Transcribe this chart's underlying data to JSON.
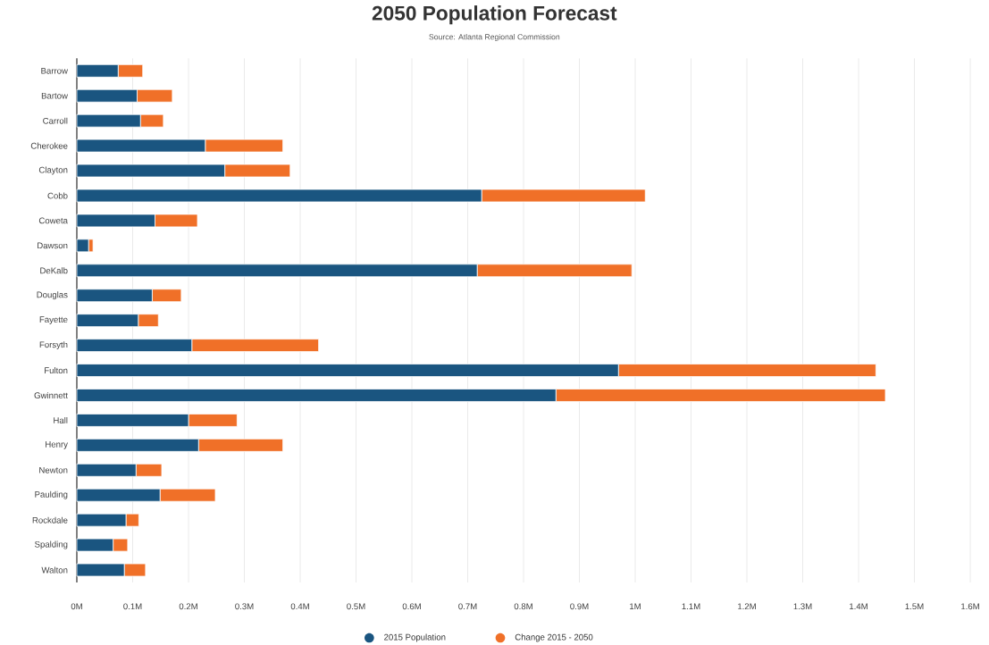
{
  "chart_data": {
    "type": "bar",
    "orientation": "horizontal",
    "stacked": true,
    "title": "2050 Population Forecast",
    "subtitle": "Source: Atlanta Regional Commission",
    "categories": [
      "Barrow",
      "Bartow",
      "Carroll",
      "Cherokee",
      "Clayton",
      "Cobb",
      "Coweta",
      "Dawson",
      "DeKalb",
      "Douglas",
      "Fayette",
      "Forsyth",
      "Fulton",
      "Gwinnett",
      "Hall",
      "Henry",
      "Newton",
      "Paulding",
      "Rockdale",
      "Spalding",
      "Walton"
    ],
    "series": [
      {
        "name": "2015 Population",
        "color": "#1a5580",
        "values": [
          0.074,
          0.108,
          0.114,
          0.23,
          0.265,
          0.725,
          0.14,
          0.021,
          0.717,
          0.135,
          0.11,
          0.206,
          0.97,
          0.858,
          0.2,
          0.218,
          0.106,
          0.149,
          0.088,
          0.065,
          0.085
        ]
      },
      {
        "name": "Change 2015 - 2050",
        "color": "#f07028",
        "values": [
          0.044,
          0.063,
          0.041,
          0.139,
          0.117,
          0.293,
          0.076,
          0.008,
          0.277,
          0.052,
          0.036,
          0.227,
          0.461,
          0.59,
          0.087,
          0.151,
          0.046,
          0.099,
          0.023,
          0.026,
          0.038
        ]
      }
    ],
    "xlim": [
      0,
      1.6
    ],
    "xticks": [
      {
        "value": 0,
        "label": "0M"
      },
      {
        "value": 0.1,
        "label": "0.1M"
      },
      {
        "value": 0.2,
        "label": "0.2M"
      },
      {
        "value": 0.3,
        "label": "0.3M"
      },
      {
        "value": 0.4,
        "label": "0.4M"
      },
      {
        "value": 0.5,
        "label": "0.5M"
      },
      {
        "value": 0.6,
        "label": "0.6M"
      },
      {
        "value": 0.7,
        "label": "0.7M"
      },
      {
        "value": 0.8,
        "label": "0.8M"
      },
      {
        "value": 0.9,
        "label": "0.9M"
      },
      {
        "value": 1,
        "label": "1M"
      },
      {
        "value": 1.1,
        "label": "1.1M"
      },
      {
        "value": 1.2,
        "label": "1.2M"
      },
      {
        "value": 1.3,
        "label": "1.3M"
      },
      {
        "value": 1.4,
        "label": "1.4M"
      },
      {
        "value": 1.5,
        "label": "1.5M"
      },
      {
        "value": 1.6,
        "label": "1.6M"
      }
    ],
    "grid": "x",
    "legend": "bottom"
  }
}
